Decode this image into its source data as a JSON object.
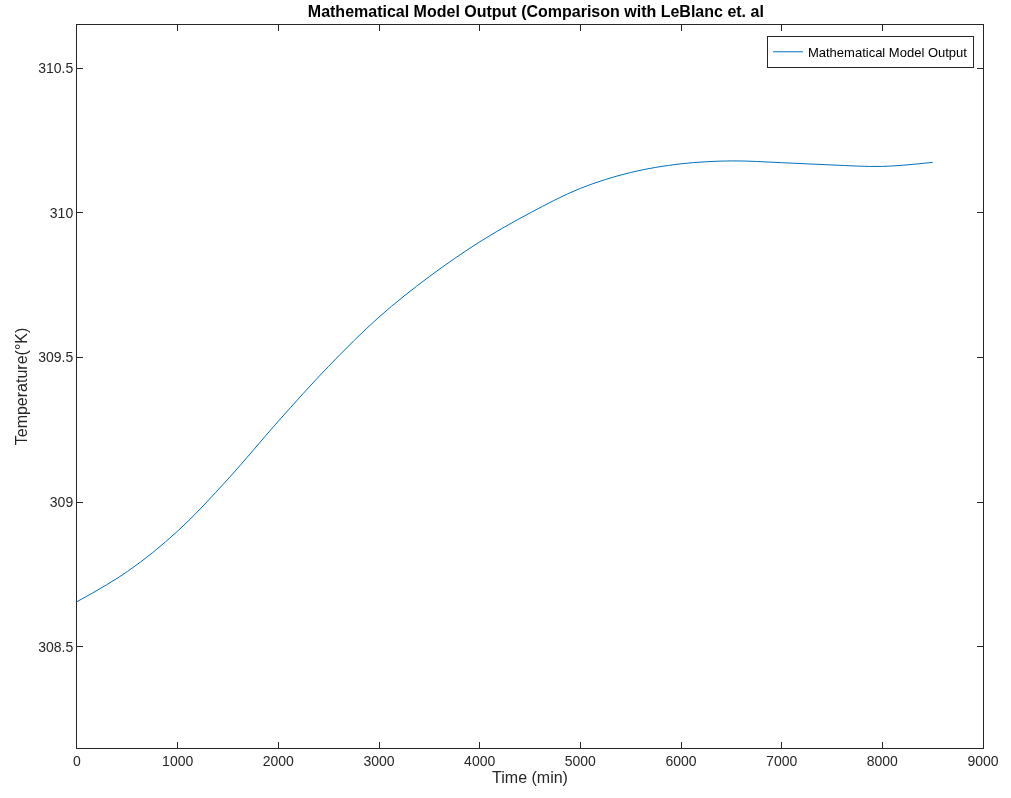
{
  "chart_data": {
    "type": "line",
    "title": "Mathematical Model Output (Comparison with LeBlanc et. al",
    "xlabel": "Time (min)",
    "ylabel": "Temperature(°K)",
    "x": [
      0,
      500,
      1000,
      1500,
      2000,
      2500,
      3000,
      3500,
      4000,
      4500,
      5000,
      5500,
      6000,
      6500,
      7000,
      7500,
      8000,
      8500
    ],
    "series": [
      {
        "name": "Mathematical Model Output",
        "color": "#0072bd",
        "values": [
          308.656,
          308.76,
          308.9,
          309.08,
          309.28,
          309.47,
          309.64,
          309.78,
          309.9,
          310.0,
          310.085,
          310.14,
          310.17,
          310.18,
          310.174,
          310.166,
          310.161,
          310.175
        ]
      }
    ],
    "xlim": [
      0,
      9000
    ],
    "xticks": [
      0,
      1000,
      2000,
      3000,
      4000,
      5000,
      6000,
      7000,
      8000,
      9000
    ],
    "ylim": [
      308.15,
      310.65
    ],
    "yticks": [
      308.5,
      309,
      309.5,
      310,
      310.5
    ],
    "legend": "top right",
    "marker": "none",
    "line_style": "solid"
  }
}
